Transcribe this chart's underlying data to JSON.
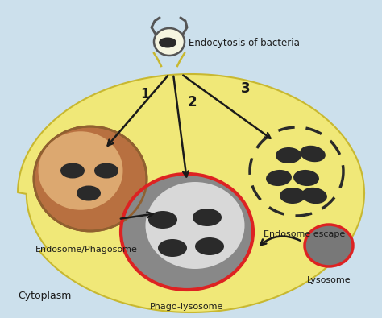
{
  "bg_outer": "#cce0ec",
  "bg_cell": "#f0e878",
  "cell_outline": "#c8b830",
  "text_color": "#1a1a1a",
  "bacteria_color": "#2a2a2a",
  "arrow_color": "#1a1a1a",
  "endosome_color_outer": "#c07840",
  "endosome_color_inner": "#ddb080",
  "endosome_outline": "#a06020",
  "phagolyso_outer": "#888888",
  "phagolyso_inner": "#d4d4d4",
  "phagolyso_red": "#dd2222",
  "lysosome_fill": "#787878",
  "lysosome_red": "#dd2222",
  "vesicle_fill": "#f5f5e0",
  "vesicle_outline": "#555555",
  "endocytosis_text": "Endocytosis of bacteria",
  "endosome_text": "Endosome/Phagosome",
  "escape_text": "Endosome escape",
  "phagolys_text": "Phago-lysosome",
  "lysosome_text": "Lysosome",
  "cytoplasm_text": "Cytoplasm",
  "label1": "1",
  "label2": "2",
  "label3": "3",
  "figw": 4.74,
  "figh": 3.95,
  "dpi": 100
}
